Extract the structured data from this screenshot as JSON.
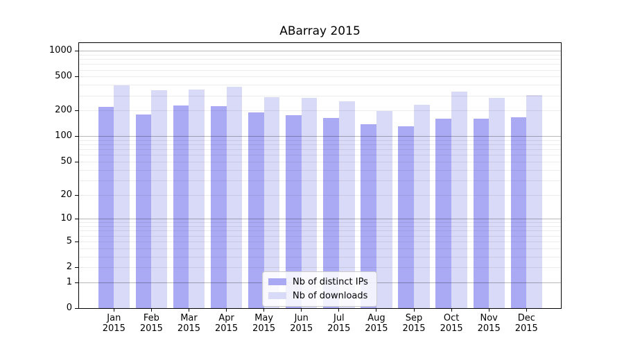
{
  "title": "ABarray 2015",
  "legend": {
    "items": [
      {
        "label": "Nb of distinct IPs"
      },
      {
        "label": "Nb of downloads"
      }
    ]
  },
  "chart_data": {
    "type": "bar",
    "title": "ABarray 2015",
    "categories": [
      "Jan 2015",
      "Feb 2015",
      "Mar 2015",
      "Apr 2015",
      "May 2015",
      "Jun 2015",
      "Jul 2015",
      "Aug 2015",
      "Sep 2015",
      "Oct 2015",
      "Nov 2015",
      "Dec 2015"
    ],
    "series": [
      {
        "name": "Nb of distinct IPs",
        "color": "#aaaaf4",
        "values": [
          220,
          181,
          229,
          225,
          192,
          175,
          164,
          139,
          130,
          160,
          162,
          166
        ]
      },
      {
        "name": "Nb of downloads",
        "color": "#d9d9f8",
        "values": [
          391,
          349,
          350,
          383,
          289,
          280,
          255,
          196,
          234,
          332,
          280,
          304
        ]
      }
    ],
    "xlabel": "",
    "ylabel": "",
    "yscale": "log1p",
    "yticks": [
      0,
      1,
      2,
      5,
      10,
      20,
      50,
      100,
      200,
      500,
      1000
    ],
    "ylim": [
      0,
      1231
    ],
    "grid": "horizontal",
    "legend_position": "lower center",
    "colors": {
      "major_grid": "rgba(0,0,0,0.28)",
      "minor_grid": "rgba(0,0,0,0.075)",
      "axis": "#000000",
      "background": "#ffffff"
    }
  }
}
